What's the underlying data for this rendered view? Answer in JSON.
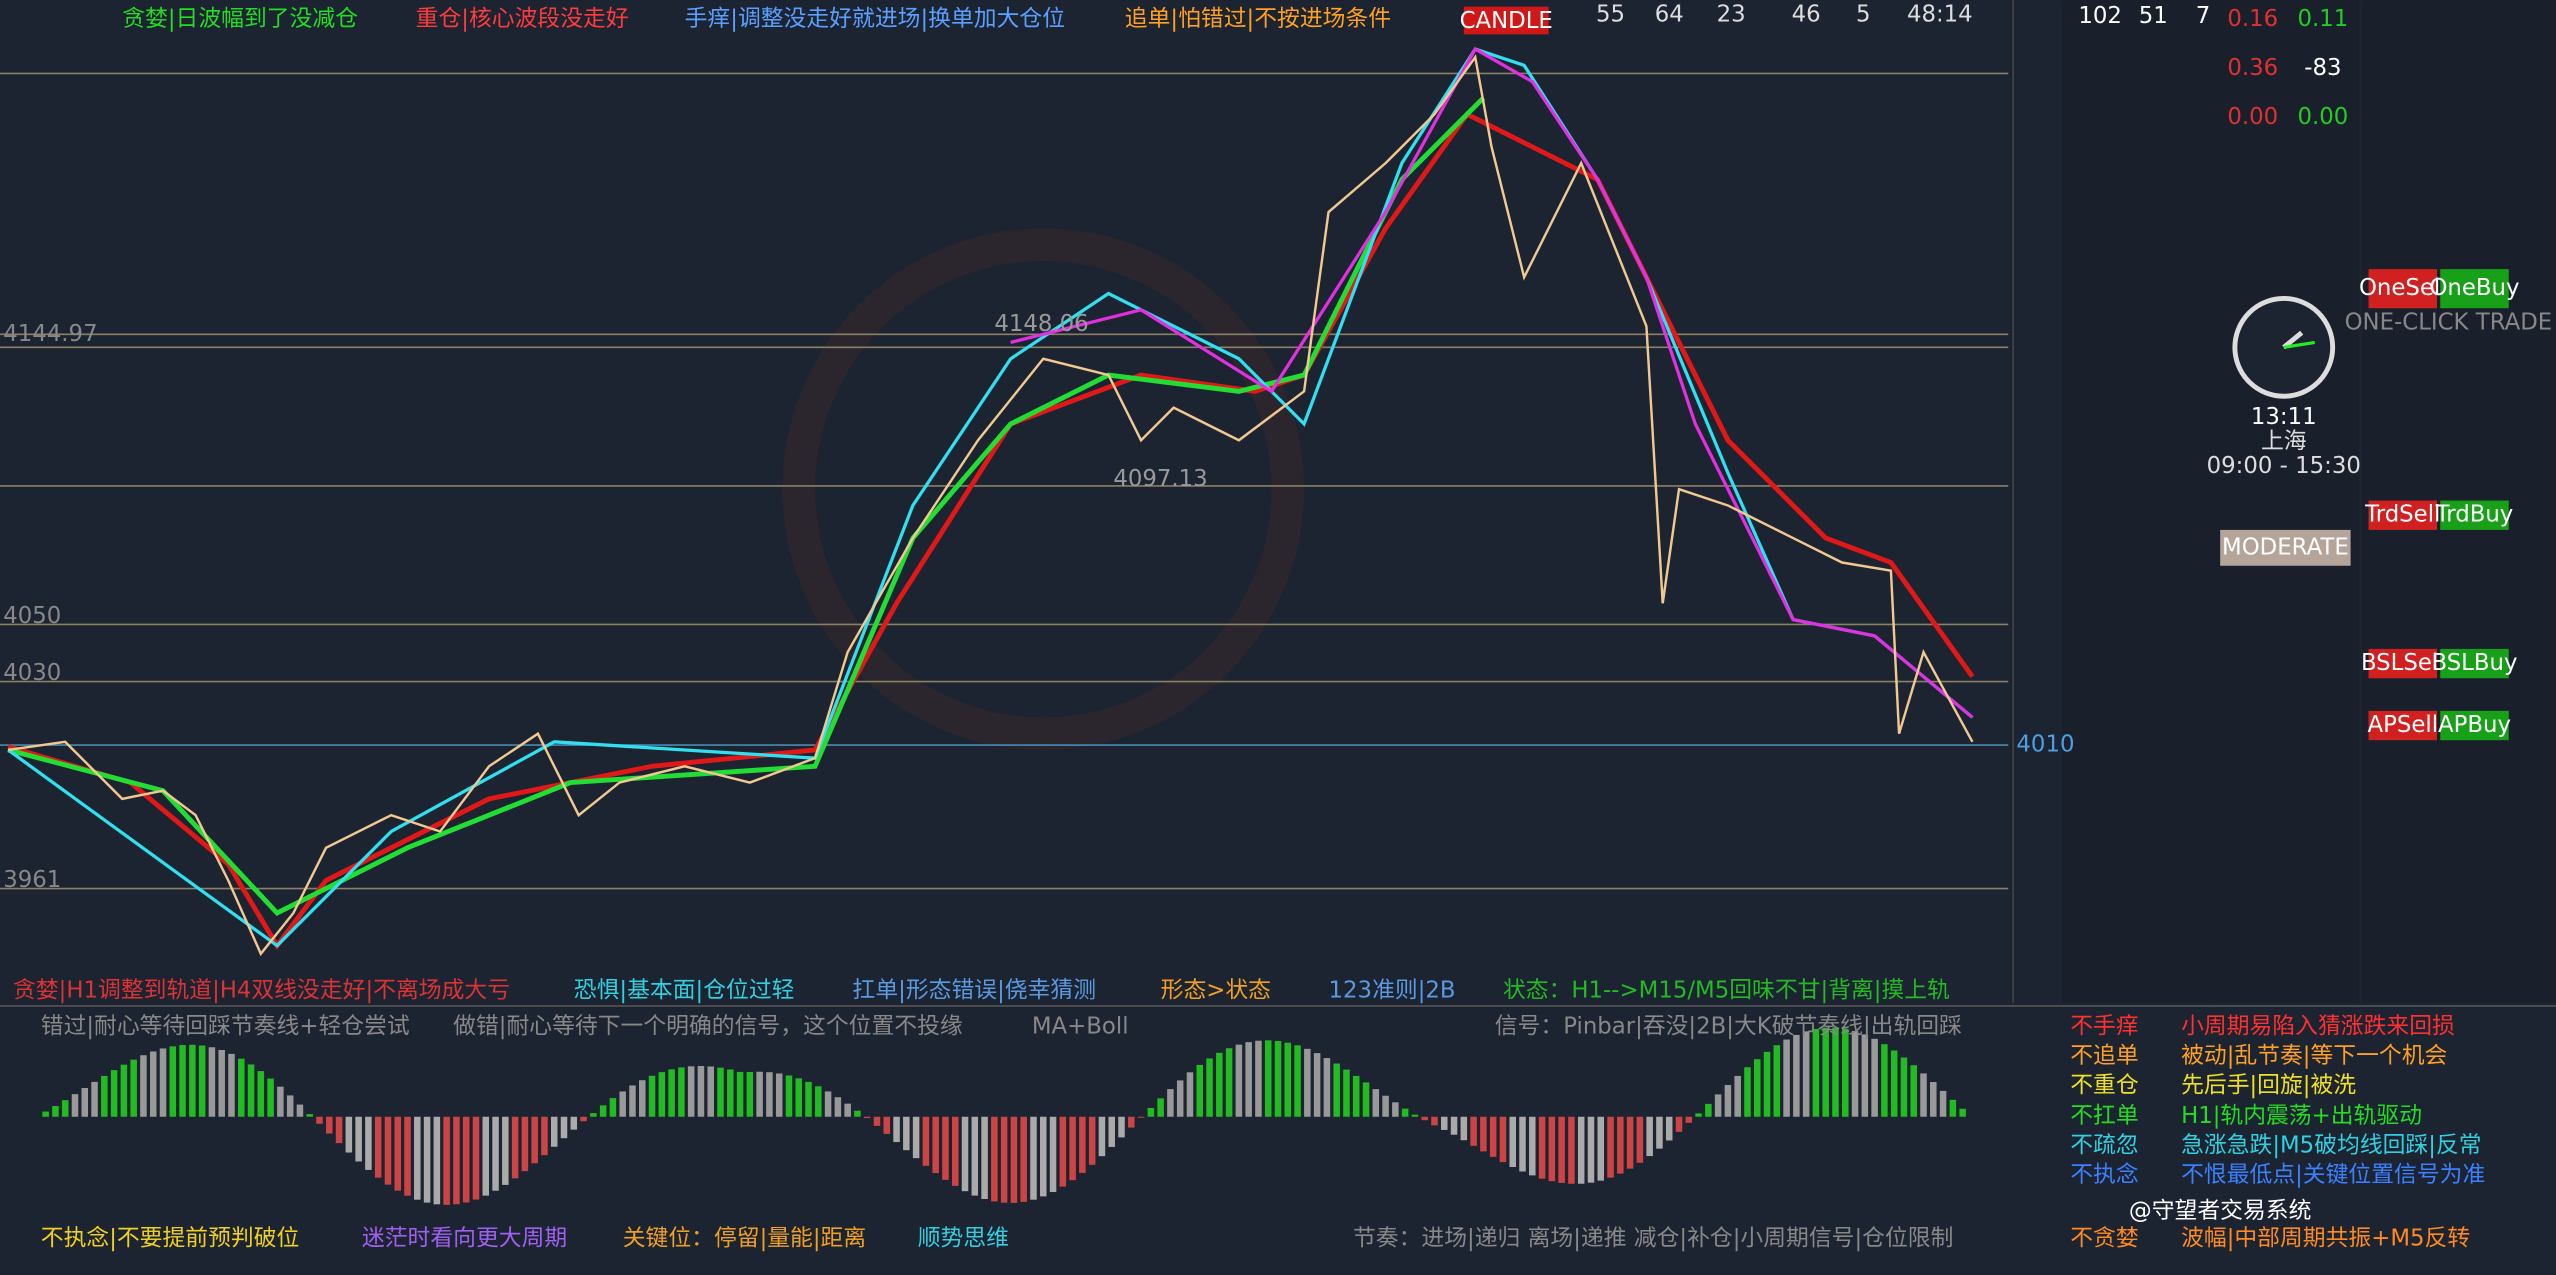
{
  "header": {
    "captions": [
      "贪婪|日波幅到了没减仓",
      "重仓|核心波段没走好",
      "手痒|调整没走好就进场|换单加大仓位",
      "追单|怕错过|不按进场条件"
    ],
    "button": "CANDLE",
    "stats": [
      "55",
      "64",
      "23",
      "46",
      "5",
      "48:14"
    ]
  },
  "chart": {
    "price_labels": [
      "4144.97",
      "4050",
      "4030",
      "3961",
      "4010",
      "4148.06",
      "4097.13"
    ],
    "captions": [
      "贪婪|H1调整到轨道|H4双线没走好|不离场成大亏",
      "恐惧|基本面|仓位过轻",
      "扛单|形态错误|侥幸猜测",
      "形态>状态",
      "123准则|2B",
      "状态：H1-->M15/M5回味不甘|背离|摸上轨"
    ]
  },
  "oscillator": {
    "top_notes": [
      "错过|耐心等待回踩节奏线+轻仓尝试",
      "做错|耐心等待下一个明确的信号，这个位置不投缘",
      "MA+Boll",
      "信号：Pinbar|吞没|2B|大K破节奏线|出轨回踩"
    ],
    "bottom_notes": [
      "不执念|不要提前预判破位",
      "迷茫时看向更大周期",
      "关键位：停留|量能|距离",
      "顺势思维",
      "节奏：进场|递归 离场|递推 减仓|补仓|小周期信号|仓位限制"
    ]
  },
  "panel": {
    "top_stats": [
      "102",
      "51",
      "7"
    ],
    "lots": [
      "0.16",
      "0.11",
      "0.36",
      "-83",
      "0.00",
      "0.00"
    ],
    "clock": {
      "time": "13:11",
      "city": "上海",
      "hours": "09:00 - 15:30"
    },
    "mode": "MODERATE",
    "one_click": "ONE-CLICK TRADE",
    "buttons": [
      "OneSell",
      "OneBuy",
      "TrdSell",
      "TrdBuy",
      "BSLSell",
      "BSLBuy",
      "APSell",
      "APBuy"
    ]
  },
  "rules": [
    [
      "不手痒",
      "小周期易陷入猜涨跌来回损"
    ],
    [
      "不追单",
      "被动|乱节奏|等下一个机会"
    ],
    [
      "不重仓",
      "先后手|回旋|被洗"
    ],
    [
      "不扛单",
      "H1|轨内震荡+出轨驱动"
    ],
    [
      "不疏忽",
      "急涨急跌|M5破均线回踩|反常"
    ],
    [
      "不执念",
      "不恨最低点|关键位置信号为准"
    ],
    [
      "不贪婪",
      "波幅|中部周期共振+M5反转"
    ]
  ],
  "watermark": "@守望者交易系统"
}
